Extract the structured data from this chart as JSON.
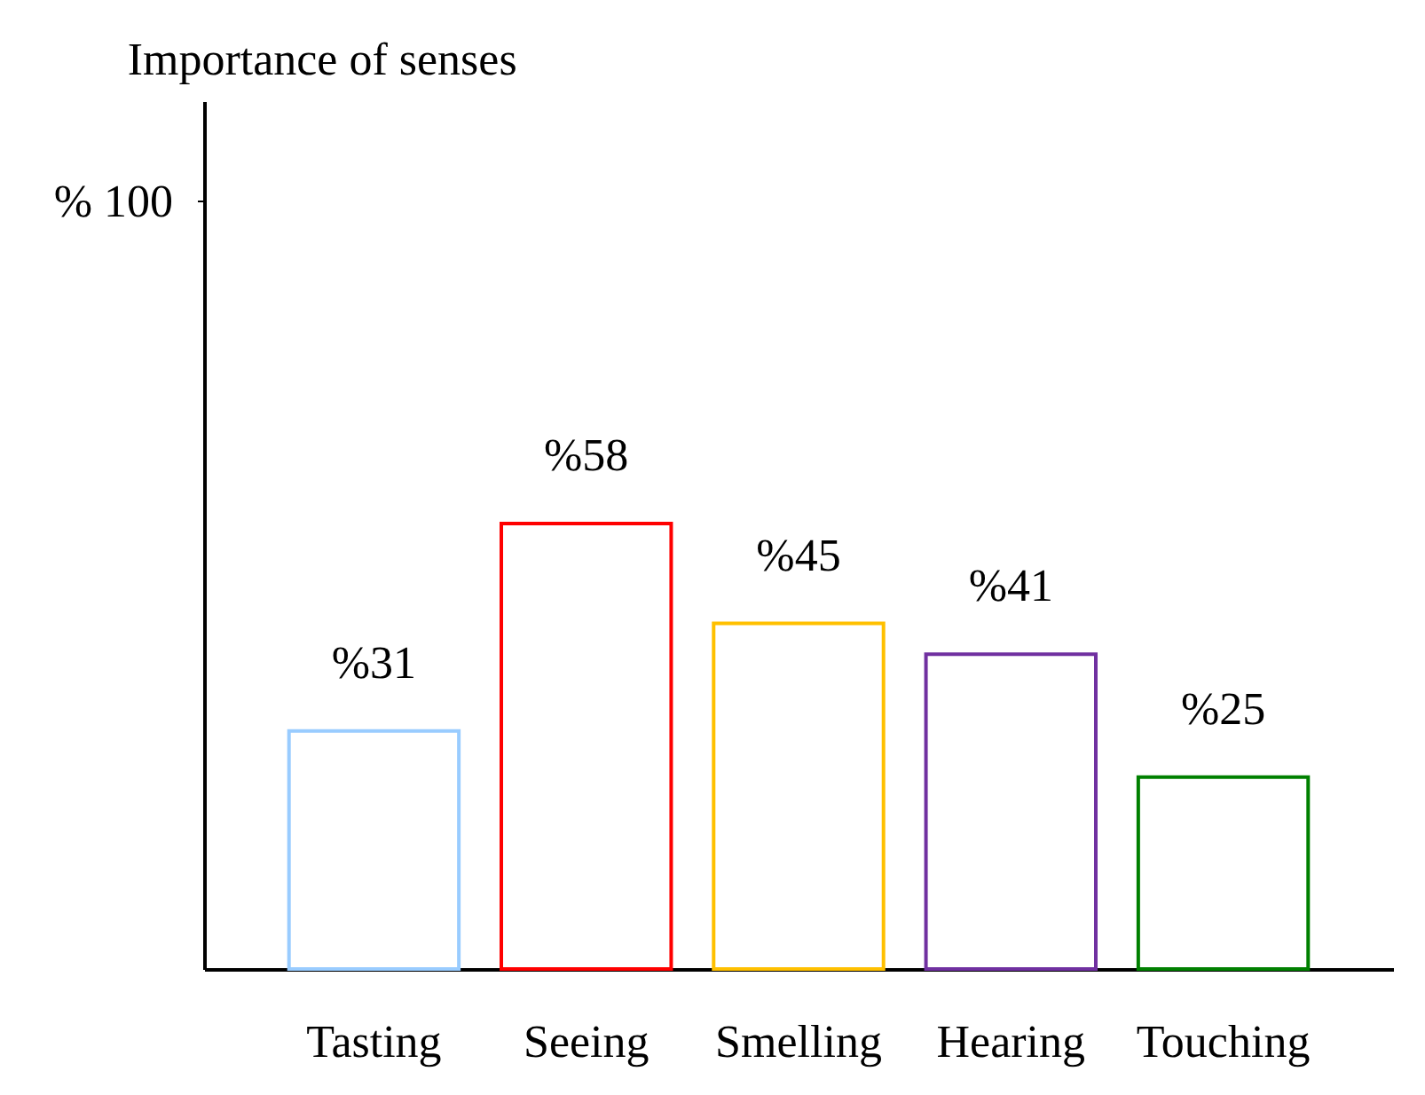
{
  "chart_data": {
    "type": "bar",
    "title": "Importance of senses",
    "categories": [
      "Tasting",
      "Seeing",
      "Smelling",
      "Hearing",
      "Touching"
    ],
    "values": [
      31,
      58,
      45,
      41,
      25
    ],
    "value_labels": [
      "%31",
      "%58",
      "%45",
      "%41",
      "%25"
    ],
    "colors": [
      "#99ccff",
      "#ff0000",
      "#ffc000",
      "#7030a0",
      "#008000"
    ],
    "ylim": [
      0,
      113
    ],
    "yticks": [
      {
        "value": 100,
        "label": "% 100"
      }
    ]
  }
}
